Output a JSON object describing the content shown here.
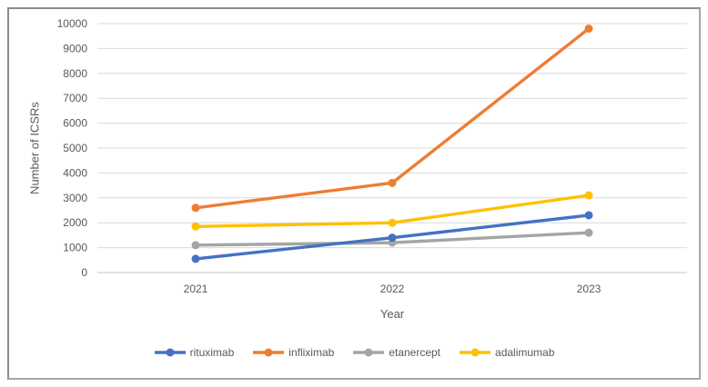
{
  "chart_data": {
    "type": "line",
    "title": "",
    "xlabel": "Year",
    "ylabel": "Number of ICSRs",
    "categories": [
      "2021",
      "2022",
      "2023"
    ],
    "series": [
      {
        "name": "rituximab",
        "color": "#4472C4",
        "values": [
          550,
          1400,
          2300
        ]
      },
      {
        "name": "infliximab",
        "color": "#ED7D31",
        "values": [
          2600,
          3600,
          9800
        ]
      },
      {
        "name": "etanercept",
        "color": "#A5A5A5",
        "values": [
          1100,
          1200,
          1600
        ]
      },
      {
        "name": "adalimumab",
        "color": "#FFC000",
        "values": [
          1850,
          2000,
          3100
        ]
      }
    ],
    "ylim": [
      0,
      10000
    ],
    "ytick_step": 1000,
    "ytick_labels": [
      "0",
      "1000",
      "2000",
      "3000",
      "4000",
      "5000",
      "6000",
      "7000",
      "8000",
      "9000",
      "10000"
    ],
    "grid": true,
    "legend_position": "bottom",
    "marker": "circle"
  },
  "styles": {
    "grid_color": "#D9D9D9",
    "axis_line_color": "#C6C6C6",
    "text_color": "#595959",
    "frame_border_color": "#8C8C8C",
    "background": "#FFFFFF"
  }
}
